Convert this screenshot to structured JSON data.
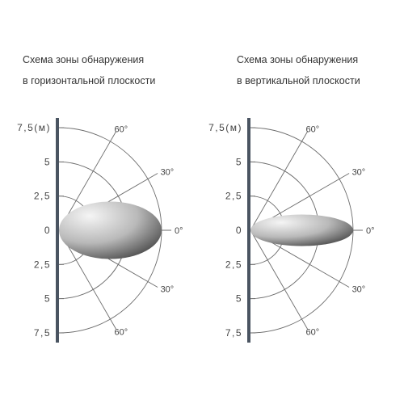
{
  "colors": {
    "axis": "#4a5461",
    "grid": "#6b6b6b",
    "text": "#444444",
    "lobe_light": "#f4f4f4",
    "lobe_dark": "#4a4a4a"
  },
  "panels": [
    {
      "title_line1": "Схема зоны обнаружения",
      "title_line2": "в горизонтальной плоскости",
      "y_labels": {
        "top_max": "7,5(м)",
        "top_mid": "5",
        "top_min": "2,5",
        "zero": "0",
        "bot_min": "2,5",
        "bot_mid": "5",
        "bot_max": "7,5"
      },
      "angle_labels": {
        "up60": "60°",
        "up30": "30°",
        "zero": "0°",
        "down30": "30°",
        "down60": "60°"
      },
      "lobe": {
        "length_m": 7.5,
        "half_width_m": 2.1
      }
    },
    {
      "title_line1": "Схема зоны обнаружения",
      "title_line2": "в вертикальной плоскости",
      "y_labels": {
        "top_max": "7,5(м)",
        "top_mid": "5",
        "top_min": "2,5",
        "zero": "0",
        "bot_min": "2,5",
        "bot_mid": "5",
        "bot_max": "7,5"
      },
      "angle_labels": {
        "up60": "60°",
        "up30": "30°",
        "zero": "0°",
        "down30": "30°",
        "down60": "60°"
      },
      "lobe": {
        "length_m": 7.5,
        "half_width_m": 1.15
      }
    }
  ]
}
